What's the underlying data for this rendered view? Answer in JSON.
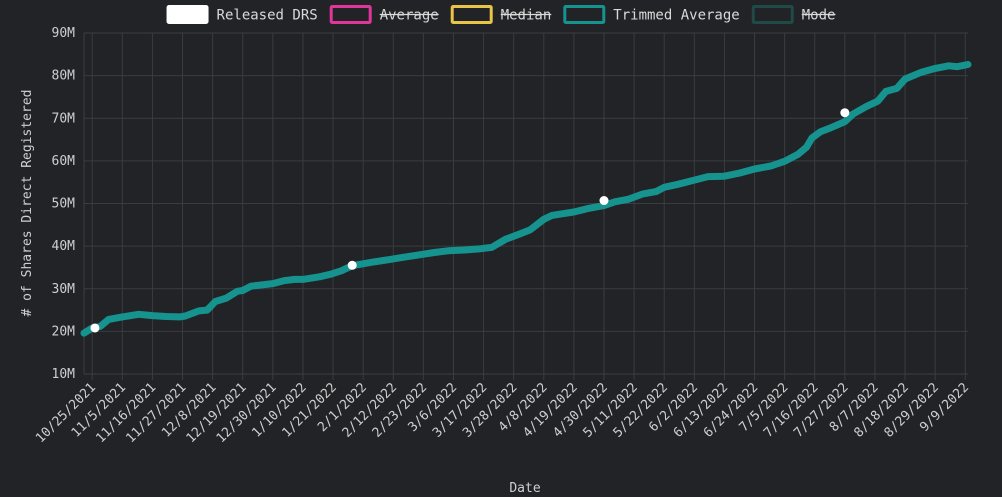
{
  "chart_data": {
    "type": "line",
    "xlabel": "Date",
    "ylabel": "# of Shares Direct Registered",
    "ylim": [
      10,
      90
    ],
    "y_unit": "M",
    "y_ticks": [
      "10M",
      "20M",
      "30M",
      "40M",
      "50M",
      "60M",
      "70M",
      "80M",
      "90M"
    ],
    "x_range": [
      "2021-10-22",
      "2022-09-10"
    ],
    "x_ticks": [
      "10/25/2021",
      "11/5/2021",
      "11/16/2021",
      "11/27/2021",
      "12/8/2021",
      "12/19/2021",
      "12/30/2021",
      "1/10/2022",
      "1/21/2022",
      "2/1/2022",
      "2/12/2022",
      "2/23/2022",
      "3/6/2022",
      "3/17/2022",
      "3/28/2022",
      "4/8/2022",
      "4/19/2022",
      "4/30/2022",
      "5/11/2022",
      "5/22/2022",
      "6/2/2022",
      "6/13/2022",
      "6/24/2022",
      "7/5/2022",
      "7/16/2022",
      "7/27/2022",
      "8/7/2022",
      "8/18/2022",
      "8/29/2022",
      "9/9/2022"
    ],
    "x_tick_dates": [
      "2021-10-25",
      "2021-11-05",
      "2021-11-16",
      "2021-11-27",
      "2021-12-08",
      "2021-12-19",
      "2021-12-30",
      "2022-01-10",
      "2022-01-21",
      "2022-02-01",
      "2022-02-12",
      "2022-02-23",
      "2022-03-06",
      "2022-03-17",
      "2022-03-28",
      "2022-04-08",
      "2022-04-19",
      "2022-04-30",
      "2022-05-11",
      "2022-05-22",
      "2022-06-02",
      "2022-06-13",
      "2022-06-24",
      "2022-07-05",
      "2022-07-16",
      "2022-07-27",
      "2022-08-07",
      "2022-08-18",
      "2022-08-29",
      "2022-09-09"
    ],
    "legend_position": "top-center",
    "grid": true,
    "series": [
      {
        "name": "Released DRS",
        "style": "points",
        "color": "#ffffff",
        "enabled": true,
        "points": [
          {
            "x": "2021-10-26",
            "y": 20.8
          },
          {
            "x": "2022-01-28",
            "y": 35.5
          },
          {
            "x": "2022-04-30",
            "y": 50.7
          },
          {
            "x": "2022-07-27",
            "y": 71.3
          }
        ]
      },
      {
        "name": "Average",
        "color": "#e0359a",
        "enabled": false,
        "points": []
      },
      {
        "name": "Median",
        "color": "#e8c547",
        "enabled": false,
        "points": []
      },
      {
        "name": "Trimmed Average",
        "style": "line",
        "color": "#16938f",
        "enabled": true,
        "points": [
          {
            "x": "2021-10-22",
            "y": 19.6
          },
          {
            "x": "2021-10-25",
            "y": 20.8
          },
          {
            "x": "2021-10-28",
            "y": 21.2
          },
          {
            "x": "2021-10-31",
            "y": 22.8
          },
          {
            "x": "2021-11-05",
            "y": 23.4
          },
          {
            "x": "2021-11-11",
            "y": 24.0
          },
          {
            "x": "2021-11-16",
            "y": 23.7
          },
          {
            "x": "2021-11-21",
            "y": 23.5
          },
          {
            "x": "2021-11-26",
            "y": 23.4
          },
          {
            "x": "2021-11-28",
            "y": 23.6
          },
          {
            "x": "2021-12-03",
            "y": 24.8
          },
          {
            "x": "2021-12-06",
            "y": 25.0
          },
          {
            "x": "2021-12-09",
            "y": 27.0
          },
          {
            "x": "2021-12-13",
            "y": 27.8
          },
          {
            "x": "2021-12-17",
            "y": 29.4
          },
          {
            "x": "2021-12-19",
            "y": 29.6
          },
          {
            "x": "2021-12-22",
            "y": 30.6
          },
          {
            "x": "2021-12-30",
            "y": 31.2
          },
          {
            "x": "2022-01-03",
            "y": 31.9
          },
          {
            "x": "2022-01-07",
            "y": 32.2
          },
          {
            "x": "2022-01-10",
            "y": 32.2
          },
          {
            "x": "2022-01-16",
            "y": 32.8
          },
          {
            "x": "2022-01-20",
            "y": 33.4
          },
          {
            "x": "2022-01-24",
            "y": 34.2
          },
          {
            "x": "2022-01-28",
            "y": 35.4
          },
          {
            "x": "2022-02-04",
            "y": 36.2
          },
          {
            "x": "2022-02-10",
            "y": 36.8
          },
          {
            "x": "2022-02-15",
            "y": 37.3
          },
          {
            "x": "2022-02-21",
            "y": 37.9
          },
          {
            "x": "2022-02-27",
            "y": 38.5
          },
          {
            "x": "2022-03-04",
            "y": 38.9
          },
          {
            "x": "2022-03-10",
            "y": 39.1
          },
          {
            "x": "2022-03-16",
            "y": 39.4
          },
          {
            "x": "2022-03-20",
            "y": 39.7
          },
          {
            "x": "2022-03-25",
            "y": 41.6
          },
          {
            "x": "2022-03-30",
            "y": 42.8
          },
          {
            "x": "2022-04-03",
            "y": 43.8
          },
          {
            "x": "2022-04-08",
            "y": 46.3
          },
          {
            "x": "2022-04-11",
            "y": 47.2
          },
          {
            "x": "2022-04-15",
            "y": 47.6
          },
          {
            "x": "2022-04-19",
            "y": 48.0
          },
          {
            "x": "2022-04-24",
            "y": 48.8
          },
          {
            "x": "2022-04-30",
            "y": 49.5
          },
          {
            "x": "2022-05-04",
            "y": 50.4
          },
          {
            "x": "2022-05-09",
            "y": 51.0
          },
          {
            "x": "2022-05-14",
            "y": 52.2
          },
          {
            "x": "2022-05-19",
            "y": 52.8
          },
          {
            "x": "2022-05-22",
            "y": 53.8
          },
          {
            "x": "2022-05-27",
            "y": 54.5
          },
          {
            "x": "2022-06-02",
            "y": 55.5
          },
          {
            "x": "2022-06-07",
            "y": 56.3
          },
          {
            "x": "2022-06-13",
            "y": 56.4
          },
          {
            "x": "2022-06-19",
            "y": 57.2
          },
          {
            "x": "2022-06-24",
            "y": 58.1
          },
          {
            "x": "2022-06-30",
            "y": 58.8
          },
          {
            "x": "2022-07-05",
            "y": 59.9
          },
          {
            "x": "2022-07-10",
            "y": 61.6
          },
          {
            "x": "2022-07-13",
            "y": 63.2
          },
          {
            "x": "2022-07-15",
            "y": 65.4
          },
          {
            "x": "2022-07-18",
            "y": 66.8
          },
          {
            "x": "2022-07-22",
            "y": 67.8
          },
          {
            "x": "2022-07-27",
            "y": 69.2
          },
          {
            "x": "2022-07-30",
            "y": 71.0
          },
          {
            "x": "2022-08-04",
            "y": 72.8
          },
          {
            "x": "2022-08-08",
            "y": 74.0
          },
          {
            "x": "2022-08-11",
            "y": 76.3
          },
          {
            "x": "2022-08-15",
            "y": 77.0
          },
          {
            "x": "2022-08-18",
            "y": 79.2
          },
          {
            "x": "2022-08-24",
            "y": 80.8
          },
          {
            "x": "2022-08-29",
            "y": 81.7
          },
          {
            "x": "2022-09-03",
            "y": 82.3
          },
          {
            "x": "2022-09-06",
            "y": 82.1
          },
          {
            "x": "2022-09-10",
            "y": 82.6
          }
        ]
      },
      {
        "name": "Mode",
        "color": "#1f4a48",
        "enabled": false,
        "points": []
      }
    ]
  }
}
